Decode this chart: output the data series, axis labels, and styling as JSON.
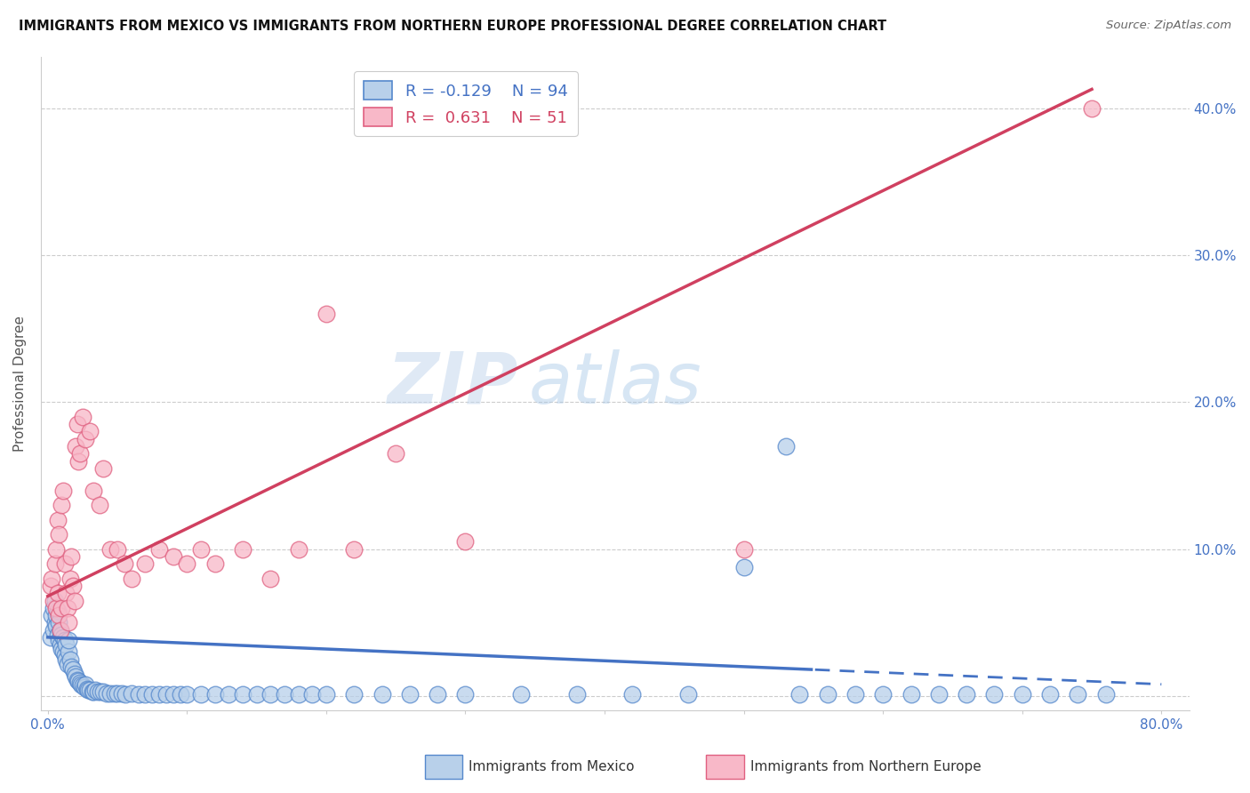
{
  "title": "IMMIGRANTS FROM MEXICO VS IMMIGRANTS FROM NORTHERN EUROPE PROFESSIONAL DEGREE CORRELATION CHART",
  "source": "Source: ZipAtlas.com",
  "ylabel": "Professional Degree",
  "xlim": [
    -0.005,
    0.82
  ],
  "ylim": [
    -0.01,
    0.435
  ],
  "xtick_vals": [
    0.0,
    0.1,
    0.2,
    0.3,
    0.4,
    0.5,
    0.6,
    0.7,
    0.8
  ],
  "xtick_labels": [
    "0.0%",
    "",
    "",
    "",
    "",
    "",
    "",
    "",
    "80.0%"
  ],
  "ytick_vals": [
    0.0,
    0.1,
    0.2,
    0.3,
    0.4
  ],
  "ytick_labels_right": [
    "",
    "10.0%",
    "20.0%",
    "30.0%",
    "40.0%"
  ],
  "legend_r_mexico": "-0.129",
  "legend_n_mexico": "94",
  "legend_r_northern": "0.631",
  "legend_n_northern": "51",
  "color_mexico_fill": "#b8d0ea",
  "color_mexico_edge": "#5588cc",
  "color_northern_fill": "#f8b8c8",
  "color_northern_edge": "#e06080",
  "trendline_mexico_color": "#4472c4",
  "trendline_northern_color": "#d04060",
  "background_color": "#ffffff",
  "watermark_zip": "ZIP",
  "watermark_atlas": "atlas",
  "mexico_x": [
    0.002,
    0.003,
    0.004,
    0.004,
    0.005,
    0.005,
    0.006,
    0.006,
    0.007,
    0.007,
    0.008,
    0.008,
    0.009,
    0.009,
    0.01,
    0.01,
    0.011,
    0.011,
    0.012,
    0.012,
    0.013,
    0.013,
    0.014,
    0.015,
    0.015,
    0.016,
    0.017,
    0.018,
    0.019,
    0.02,
    0.021,
    0.022,
    0.023,
    0.024,
    0.025,
    0.026,
    0.027,
    0.028,
    0.029,
    0.03,
    0.032,
    0.033,
    0.034,
    0.036,
    0.038,
    0.04,
    0.042,
    0.045,
    0.048,
    0.05,
    0.053,
    0.056,
    0.06,
    0.065,
    0.07,
    0.075,
    0.08,
    0.085,
    0.09,
    0.095,
    0.1,
    0.11,
    0.12,
    0.13,
    0.14,
    0.15,
    0.16,
    0.17,
    0.18,
    0.19,
    0.2,
    0.22,
    0.24,
    0.26,
    0.28,
    0.3,
    0.34,
    0.38,
    0.42,
    0.46,
    0.5,
    0.53,
    0.54,
    0.56,
    0.58,
    0.6,
    0.62,
    0.64,
    0.66,
    0.68,
    0.7,
    0.72,
    0.74,
    0.76
  ],
  "mexico_y": [
    0.04,
    0.055,
    0.045,
    0.06,
    0.05,
    0.065,
    0.048,
    0.055,
    0.042,
    0.058,
    0.038,
    0.05,
    0.035,
    0.045,
    0.032,
    0.042,
    0.03,
    0.04,
    0.028,
    0.038,
    0.025,
    0.035,
    0.022,
    0.03,
    0.038,
    0.025,
    0.02,
    0.018,
    0.015,
    0.013,
    0.011,
    0.01,
    0.009,
    0.008,
    0.007,
    0.006,
    0.008,
    0.005,
    0.004,
    0.004,
    0.003,
    0.003,
    0.004,
    0.003,
    0.003,
    0.003,
    0.002,
    0.002,
    0.002,
    0.002,
    0.002,
    0.001,
    0.002,
    0.001,
    0.001,
    0.001,
    0.001,
    0.001,
    0.001,
    0.001,
    0.001,
    0.001,
    0.001,
    0.001,
    0.001,
    0.001,
    0.001,
    0.001,
    0.001,
    0.001,
    0.001,
    0.001,
    0.001,
    0.001,
    0.001,
    0.001,
    0.001,
    0.001,
    0.001,
    0.001,
    0.088,
    0.17,
    0.001,
    0.001,
    0.001,
    0.001,
    0.001,
    0.001,
    0.001,
    0.001,
    0.001,
    0.001,
    0.001,
    0.001
  ],
  "northern_x": [
    0.002,
    0.003,
    0.004,
    0.005,
    0.006,
    0.006,
    0.007,
    0.007,
    0.008,
    0.008,
    0.009,
    0.01,
    0.01,
    0.011,
    0.012,
    0.013,
    0.014,
    0.015,
    0.016,
    0.017,
    0.018,
    0.019,
    0.02,
    0.021,
    0.022,
    0.023,
    0.025,
    0.027,
    0.03,
    0.033,
    0.037,
    0.04,
    0.045,
    0.05,
    0.055,
    0.06,
    0.07,
    0.08,
    0.09,
    0.1,
    0.11,
    0.12,
    0.14,
    0.16,
    0.18,
    0.2,
    0.22,
    0.25,
    0.3,
    0.5,
    0.75
  ],
  "northern_y": [
    0.075,
    0.08,
    0.065,
    0.09,
    0.06,
    0.1,
    0.07,
    0.12,
    0.055,
    0.11,
    0.045,
    0.06,
    0.13,
    0.14,
    0.09,
    0.07,
    0.06,
    0.05,
    0.08,
    0.095,
    0.075,
    0.065,
    0.17,
    0.185,
    0.16,
    0.165,
    0.19,
    0.175,
    0.18,
    0.14,
    0.13,
    0.155,
    0.1,
    0.1,
    0.09,
    0.08,
    0.09,
    0.1,
    0.095,
    0.09,
    0.1,
    0.09,
    0.1,
    0.08,
    0.1,
    0.26,
    0.1,
    0.165,
    0.105,
    0.1,
    0.4
  ],
  "solid_to": 0.55,
  "trendline_mexico_intercept": 0.04,
  "trendline_mexico_slope": -0.04,
  "trendline_northern_intercept": 0.068,
  "trendline_northern_slope": 0.46
}
